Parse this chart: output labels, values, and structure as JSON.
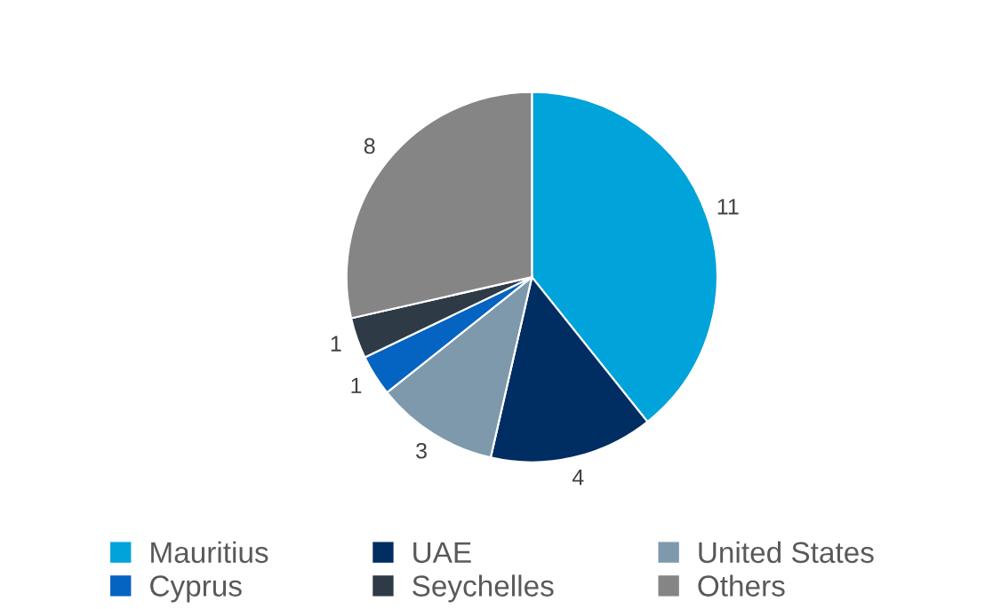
{
  "chart_data": {
    "type": "pie",
    "categories": [
      "Mauritius",
      "UAE",
      "United States",
      "Cyprus",
      "Seychelles",
      "Others"
    ],
    "values": [
      11,
      4,
      3,
      1,
      1,
      8
    ],
    "colors": [
      "#00a3da",
      "#002d62",
      "#7f99ac",
      "#0563c1",
      "#2e3a46",
      "#858585"
    ],
    "data_labels": true,
    "legend": "bottom"
  }
}
